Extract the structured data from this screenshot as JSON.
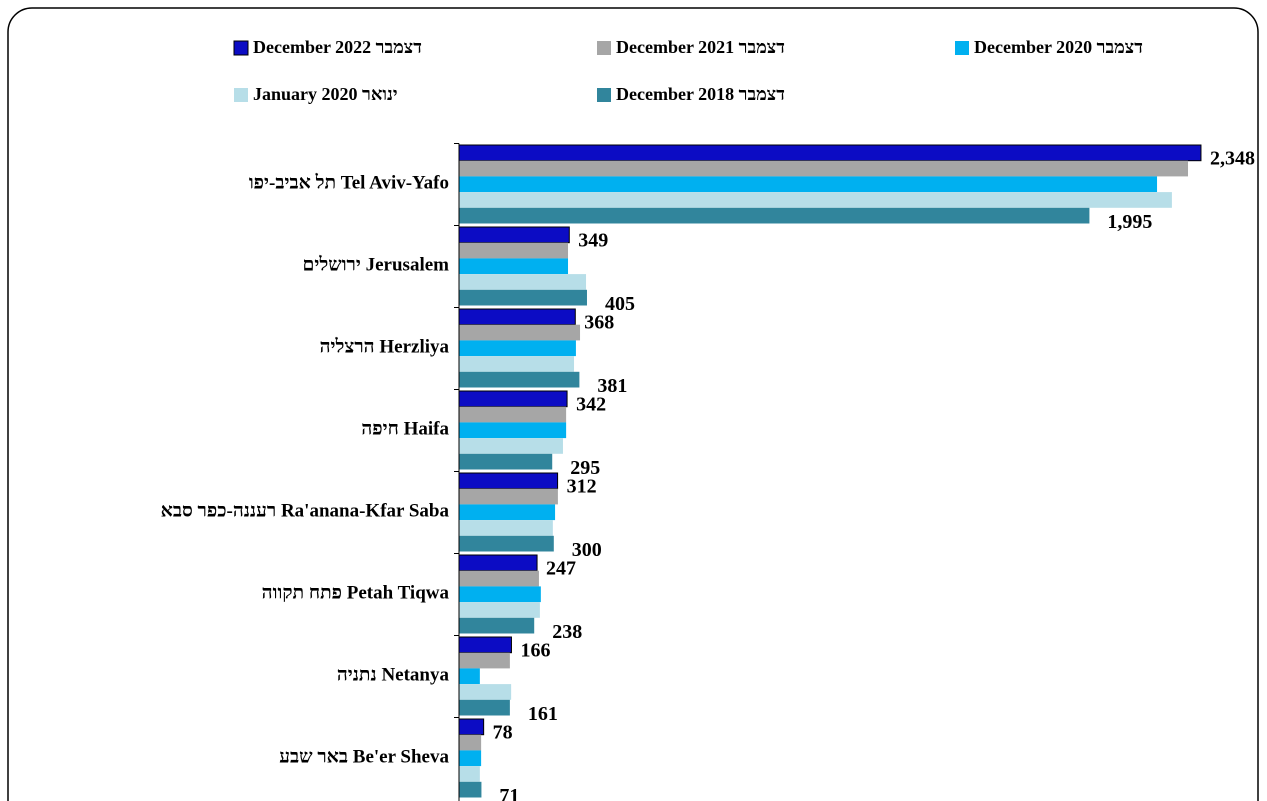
{
  "chart_data": {
    "type": "hbar",
    "categories": [
      "תל אביב-יפו Tel Aviv-Yafo",
      "ירושלים Jerusalem",
      "הרצליה Herzliya",
      "חיפה Haifa",
      "רעננה-כפר סבא Ra'anana-Kfar Saba",
      "פתח תקווה Petah Tiqwa",
      "נתניה Netanya",
      "באר שבע Be'er Sheva"
    ],
    "series": [
      {
        "name": "December 2022 דצמבר",
        "color": "#0c0cc4",
        "values": [
          2348,
          349,
          368,
          342,
          312,
          247,
          166,
          78
        ],
        "value_labels": [
          "2,348",
          "349",
          "368",
          "342",
          "312",
          "247",
          "166",
          "78"
        ]
      },
      {
        "name": "December 2021 דצמבר",
        "color": "#a6a6a6",
        "values": [
          2307,
          345,
          383,
          339,
          313,
          253,
          161,
          70
        ]
      },
      {
        "name": "December 2020 דצמבר",
        "color": "#00b0f0",
        "values": [
          2209,
          345,
          370,
          339,
          304,
          259,
          66,
          70
        ]
      },
      {
        "name": "January 2020 ינואר",
        "color": "#b7dee8",
        "values": [
          2256,
          402,
          364,
          329,
          297,
          256,
          165,
          66
        ]
      },
      {
        "name": "December 2018 דצמבר",
        "color": "#31859c",
        "values": [
          1995,
          405,
          381,
          295,
          300,
          238,
          161,
          71
        ],
        "value_labels": [
          "1,995",
          "405",
          "381",
          "295",
          "300",
          "238",
          "161",
          "71"
        ]
      }
    ],
    "xlim": [
      0,
      2400
    ]
  }
}
